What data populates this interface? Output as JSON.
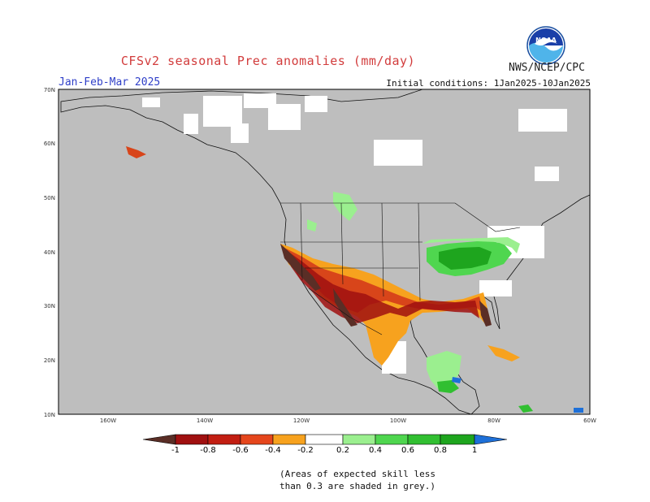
{
  "header": {
    "title": "CFSv2 seasonal Prec anomalies (mm/day)",
    "agency": "NWS/NCEP/CPC",
    "logo_text": "NOAA",
    "season": "Jan-Feb-Mar 2025",
    "initial_conditions": "Initial conditions: 1Jan2025-10Jan2025"
  },
  "map": {
    "lat_labels": [
      "70N",
      "60N",
      "50N",
      "40N",
      "30N",
      "20N",
      "10N"
    ],
    "lon_labels": [
      "160W",
      "140W",
      "120W",
      "100W",
      "80W",
      "60W"
    ],
    "colors": {
      "grey_mask": "#bebebe",
      "dry_extreme": "#5a2e26",
      "dry_strong": "#a01010",
      "dry_mod": "#d8451a",
      "dry_weak": "#f7a21e",
      "neutral": "#ffffff",
      "wet_weak": "#9bef8f",
      "wet_mod": "#4fd64f",
      "wet_strong": "#1ea51e",
      "wet_extreme": "#1e70d8"
    }
  },
  "colorbar": {
    "labels": [
      "-1",
      "-0.8",
      "-0.6",
      "-0.4",
      "-0.2",
      "0.2",
      "0.4",
      "0.6",
      "0.8",
      "1"
    ],
    "colors": [
      "#5a2e26",
      "#a01010",
      "#c21e12",
      "#e5461c",
      "#f7a21e",
      "#ffffff",
      "#9bef8f",
      "#4fd64f",
      "#31bf31",
      "#1ea51e",
      "#1e8a1e",
      "#1e70d8"
    ]
  },
  "footnote": {
    "line1": "(Areas of expected skill less",
    "line2": "than 0.3 are shaded in grey.)"
  }
}
